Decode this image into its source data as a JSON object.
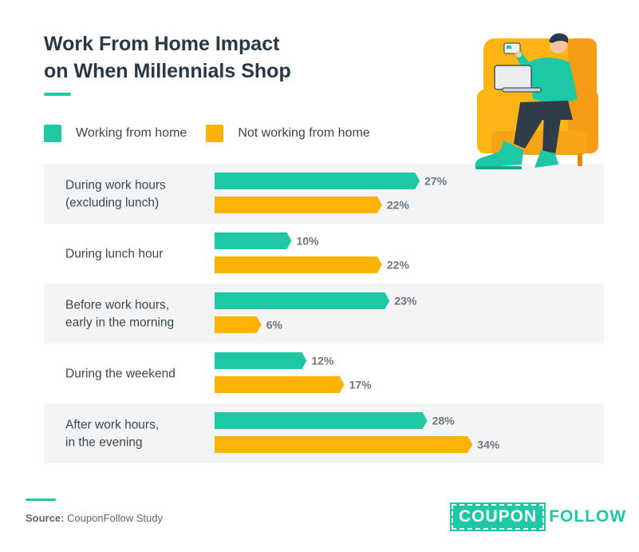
{
  "title": {
    "line1": "Work From Home Impact",
    "line2": "on When Millennials Shop"
  },
  "colors": {
    "accent": "#1ec8a5",
    "series1": "#1ec8a5",
    "series2": "#feb205",
    "band": "#f2f4f5",
    "title": "#283845"
  },
  "legend": [
    {
      "label": "Working from home",
      "color": "#1ec8a5"
    },
    {
      "label": "Not working from home",
      "color": "#feb205"
    }
  ],
  "chart_data": {
    "type": "bar",
    "orientation": "horizontal",
    "title": "Work From Home Impact on When Millennials Shop",
    "categories": [
      [
        "During work hours",
        "(excluding lunch)"
      ],
      [
        "During lunch hour"
      ],
      [
        "Before work hours,",
        "early in the morning"
      ],
      [
        "During the weekend"
      ],
      [
        "After work hours,",
        "in the evening"
      ]
    ],
    "series": [
      {
        "name": "Working from home",
        "values": [
          27,
          10,
          23,
          12,
          28
        ],
        "color": "#1ec8a5"
      },
      {
        "name": "Not working from home",
        "values": [
          22,
          22,
          6,
          17,
          34
        ],
        "color": "#feb205"
      }
    ],
    "value_suffix": "%",
    "xlim": [
      0,
      34
    ],
    "grid": false,
    "legend_position": "top-left"
  },
  "footer": {
    "source_key": "Source:",
    "source_text": "CouponFollow Study"
  },
  "logo": {
    "part1": "COUPON",
    "part2": "FOLLOW"
  },
  "illustration": {
    "icon": "person-on-armchair-with-laptop-illustration"
  }
}
